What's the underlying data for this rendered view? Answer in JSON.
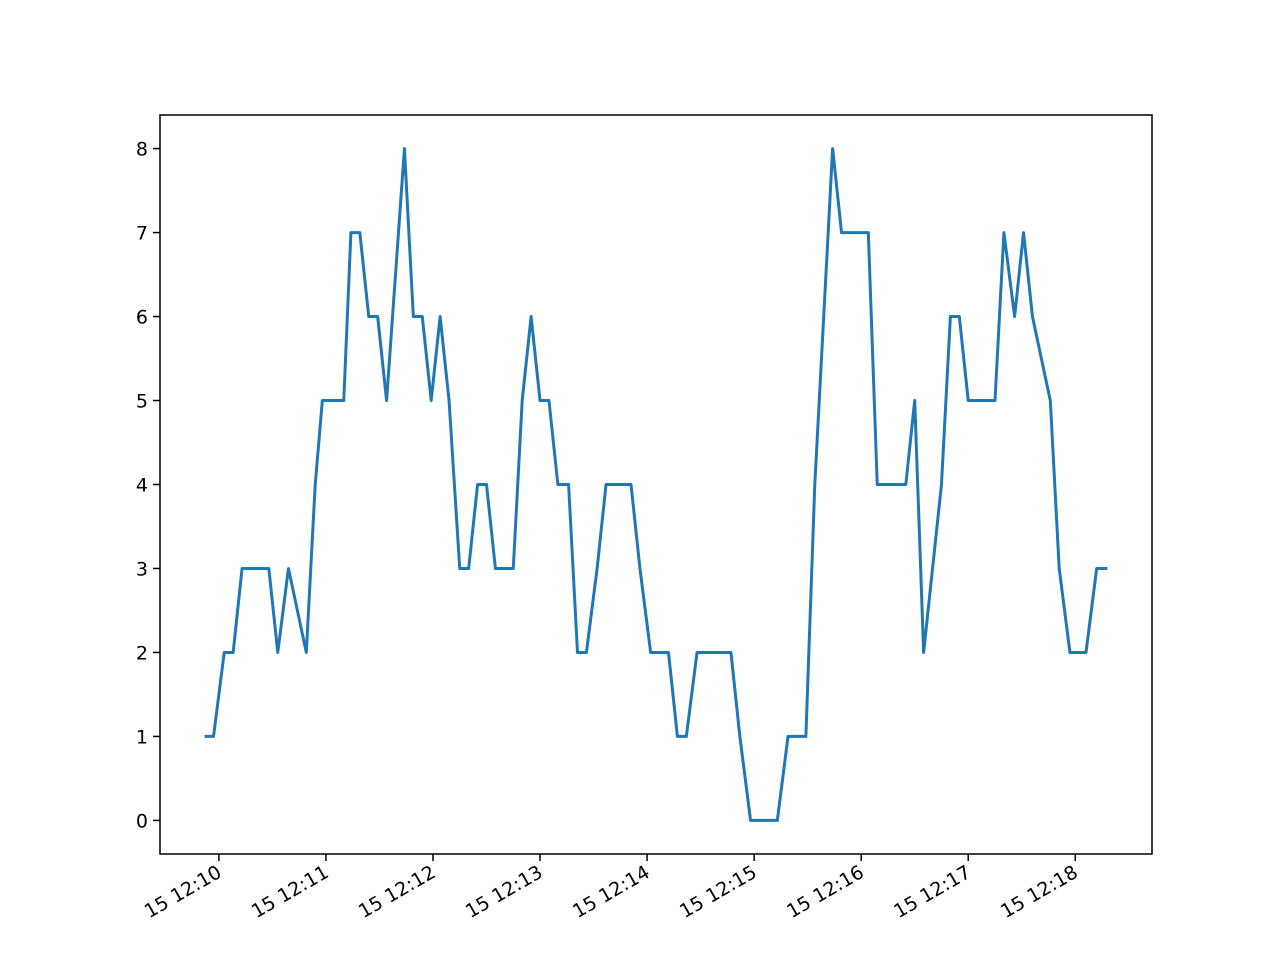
{
  "chart_data": {
    "type": "line",
    "x": [
      "15 12:09:52",
      "15 12:09:57",
      "15 12:10:03",
      "15 12:10:08",
      "15 12:10:13",
      "15 12:10:28",
      "15 12:10:33",
      "15 12:10:39",
      "15 12:10:49",
      "15 12:10:54",
      "15 12:10:58",
      "15 12:11:10",
      "15 12:11:14",
      "15 12:11:19",
      "15 12:11:24",
      "15 12:11:29",
      "15 12:11:34",
      "15 12:11:44",
      "15 12:11:49",
      "15 12:11:54",
      "15 12:11:59",
      "15 12:12:04",
      "15 12:12:09",
      "15 12:12:15",
      "15 12:12:20",
      "15 12:12:25",
      "15 12:12:30",
      "15 12:12:35",
      "15 12:12:45",
      "15 12:12:50",
      "15 12:12:55",
      "15 12:13:00",
      "15 12:13:05",
      "15 12:13:10",
      "15 12:13:16",
      "15 12:13:21",
      "15 12:13:26",
      "15 12:13:32",
      "15 12:13:37",
      "15 12:13:51",
      "15 12:13:56",
      "15 12:14:02",
      "15 12:14:12",
      "15 12:14:17",
      "15 12:14:22",
      "15 12:14:28",
      "15 12:14:47",
      "15 12:14:52",
      "15 12:14:58",
      "15 12:15:13",
      "15 12:15:19",
      "15 12:15:29",
      "15 12:15:34",
      "15 12:15:44",
      "15 12:15:49",
      "15 12:16:04",
      "15 12:16:09",
      "15 12:16:25",
      "15 12:16:30",
      "15 12:16:35",
      "15 12:16:45",
      "15 12:16:50",
      "15 12:16:55",
      "15 12:17:00",
      "15 12:17:15",
      "15 12:17:20",
      "15 12:17:26",
      "15 12:17:31",
      "15 12:17:36",
      "15 12:17:46",
      "15 12:17:51",
      "15 12:17:57",
      "15 12:18:06",
      "15 12:18:12",
      "15 12:18:18"
    ],
    "values": [
      1,
      1,
      2,
      2,
      3,
      3,
      2,
      3,
      2,
      4,
      5,
      5,
      7,
      7,
      6,
      6,
      5,
      8,
      6,
      6,
      5,
      6,
      5,
      3,
      3,
      4,
      4,
      3,
      3,
      5,
      6,
      5,
      5,
      4,
      4,
      2,
      2,
      3,
      4,
      4,
      3,
      2,
      2,
      1,
      1,
      2,
      2,
      1,
      0,
      0,
      1,
      1,
      4,
      8,
      7,
      7,
      4,
      4,
      5,
      2,
      4,
      6,
      6,
      5,
      5,
      7,
      6,
      7,
      6,
      5,
      3,
      2,
      2,
      3,
      3
    ],
    "color": "#1f77b4",
    "xlim": [
      "15 12:09:27",
      "15 12:18:43"
    ],
    "xticks": [
      "15 12:10",
      "15 12:11",
      "15 12:12",
      "15 12:13",
      "15 12:14",
      "15 12:15",
      "15 12:16",
      "15 12:17",
      "15 12:18"
    ],
    "ylim": [
      -0.4,
      8.4
    ],
    "yticks": [
      0,
      1,
      2,
      3,
      4,
      5,
      6,
      7,
      8
    ]
  }
}
